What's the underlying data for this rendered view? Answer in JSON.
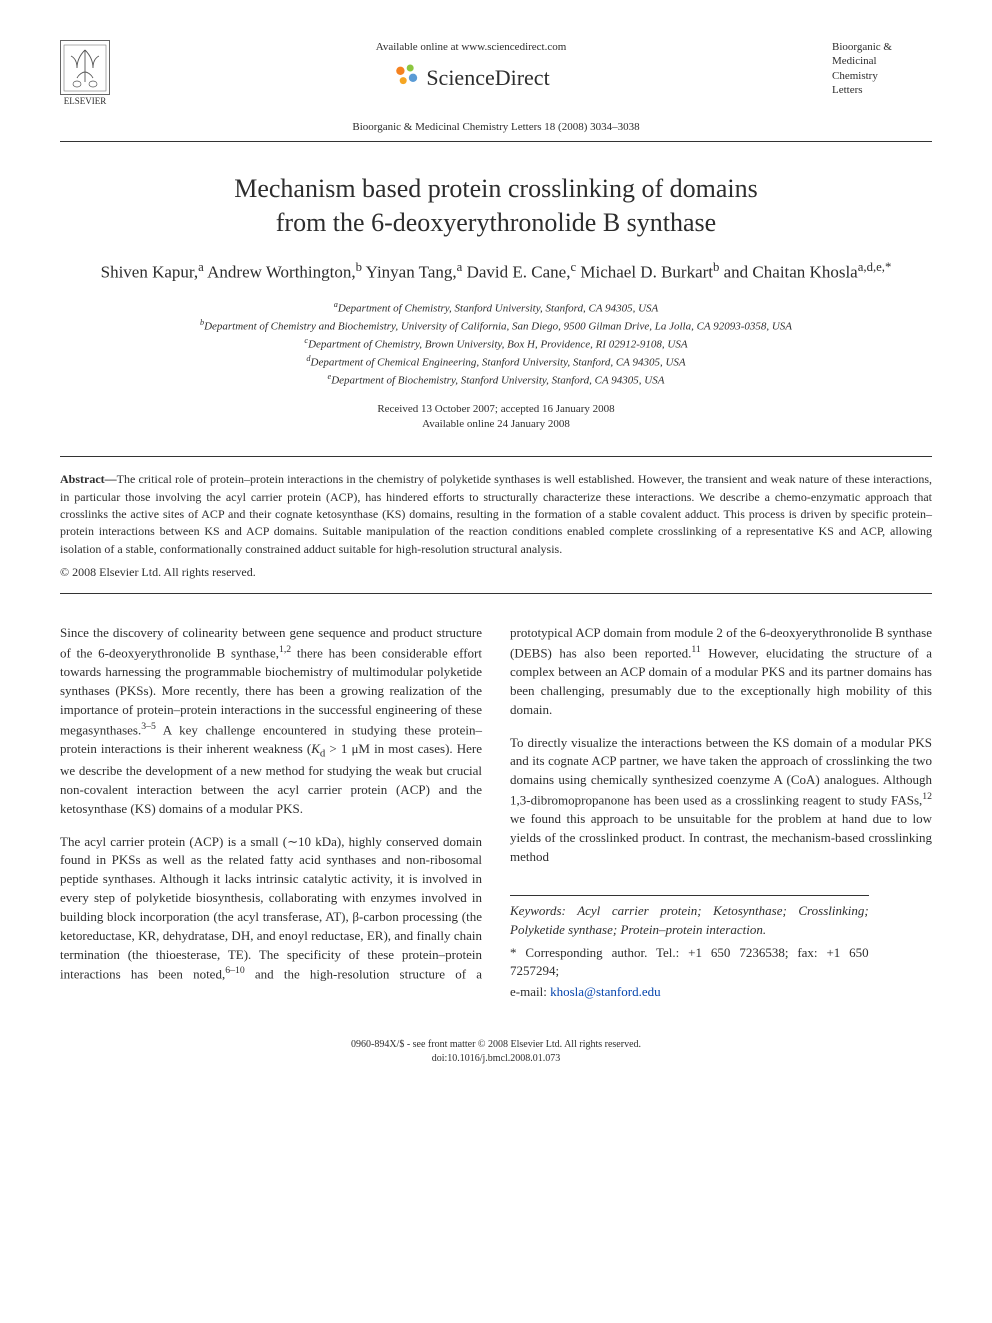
{
  "header": {
    "elsevier_label": "ELSEVIER",
    "available_online": "Available online at www.sciencedirect.com",
    "sciencedirect": "ScienceDirect",
    "journal_box_lines": [
      "Bioorganic &",
      "Medicinal",
      "Chemistry",
      "Letters"
    ],
    "journal_ref": "Bioorganic & Medicinal Chemistry Letters 18 (2008) 3034–3038"
  },
  "title_lines": [
    "Mechanism based protein crosslinking of domains",
    "from the 6-deoxyerythronolide B synthase"
  ],
  "authors_html": "Shiven Kapur,<sup>a</sup> Andrew Worthington,<sup>b</sup> Yinyan Tang,<sup>a</sup> David E. Cane,<sup>c</sup> Michael D. Burkart<sup>b</sup> and Chaitan Khosla<sup>a,d,e,*</sup>",
  "affiliations": [
    "<sup>a</sup>Department of Chemistry, Stanford University, Stanford, CA 94305, USA",
    "<sup>b</sup>Department of Chemistry and Biochemistry, University of California, San Diego, 9500 Gilman Drive, La Jolla, CA 92093-0358, USA",
    "<sup>c</sup>Department of Chemistry, Brown University, Box H, Providence, RI 02912-9108, USA",
    "<sup>d</sup>Department of Chemical Engineering, Stanford University, Stanford, CA 94305, USA",
    "<sup>e</sup>Department of Biochemistry, Stanford University, Stanford, CA 94305, USA"
  ],
  "dates": {
    "received_accepted": "Received 13 October 2007; accepted 16 January 2008",
    "available": "Available online 24 January 2008"
  },
  "abstract": {
    "label": "Abstract—",
    "text": "The critical role of protein–protein interactions in the chemistry of polyketide synthases is well established. However, the transient and weak nature of these interactions, in particular those involving the acyl carrier protein (ACP), has hindered efforts to structurally characterize these interactions. We describe a chemo-enzymatic approach that crosslinks the active sites of ACP and their cognate ketosynthase (KS) domains, resulting in the formation of a stable covalent adduct. This process is driven by specific protein–protein interactions between KS and ACP domains. Suitable manipulation of the reaction conditions enabled complete crosslinking of a representative KS and ACP, allowing isolation of a stable, conformationally constrained adduct suitable for high-resolution structural analysis.",
    "copyright": "© 2008 Elsevier Ltd. All rights reserved."
  },
  "body_paragraphs": [
    "Since the discovery of colinearity between gene sequence and product structure of the 6-deoxyerythronolide B synthase,<sup>1,2</sup> there has been considerable effort towards harnessing the programmable biochemistry of multimodular polyketide synthases (PKSs). More recently, there has been a growing realization of the importance of protein–protein interactions in the successful engineering of these megasynthases.<sup>3–5</sup> A key challenge encountered in studying these protein–protein interactions is their inherent weakness (<i>K</i><sub>d</sub> > 1 μM in most cases). Here we describe the development of a new method for studying the weak but crucial non-covalent interaction between the acyl carrier protein (ACP) and the ketosynthase (KS) domains of a modular PKS.",
    "The acyl carrier protein (ACP) is a small (∼10 kDa), highly conserved domain found in PKSs as well as the related fatty acid synthases and non-ribosomal peptide synthases. Although it lacks intrinsic catalytic activity, it is involved in every step of polyketide biosynthesis, collaborating with enzymes involved in building block incorporation (the acyl transferase, AT), β-carbon processing (the ketoreductase, KR, dehydratase, DH, and enoyl reductase, ER), and finally chain termination (the thioesterase, TE). The specificity of these protein–protein interactions has been noted,<sup>6–10</sup> and the high-resolution structure of a prototypical ACP domain from module 2 of the 6-deoxyerythronolide B synthase (DEBS) has also been reported.<sup>11</sup> However, elucidating the structure of a complex between an ACP domain of a modular PKS and its partner domains has been challenging, presumably due to the exceptionally high mobility of this domain.",
    "To directly visualize the interactions between the KS domain of a modular PKS and its cognate ACP partner, we have taken the approach of crosslinking the two domains using chemically synthesized coenzyme A (CoA) analogues. Although 1,3-dibromopropanone has been used as a crosslinking reagent to study FASs,<sup>12</sup> we found this approach to be unsuitable for the problem at hand due to low yields of the crosslinked product. In contrast, the mechanism-based crosslinking method"
  ],
  "footer": {
    "keywords_label": "Keywords:",
    "keywords": "Acyl carrier protein; Ketosynthase; Crosslinking; Polyketide synthase; Protein–protein interaction.",
    "corresponding": "* Corresponding author. Tel.: +1 650 7236538; fax: +1 650 7257294;",
    "email_label": "e-mail:",
    "email": "khosla@stanford.edu",
    "front_matter_line1": "0960-894X/$ - see front matter © 2008 Elsevier Ltd. All rights reserved.",
    "front_matter_line2": "doi:10.1016/j.bmcl.2008.01.073"
  },
  "colors": {
    "text": "#2d2d2d",
    "link": "#0645ad",
    "rule": "#333333",
    "sd_orange": "#f58220",
    "sd_green": "#8cc63f",
    "sd_blue": "#5a9bd5"
  }
}
